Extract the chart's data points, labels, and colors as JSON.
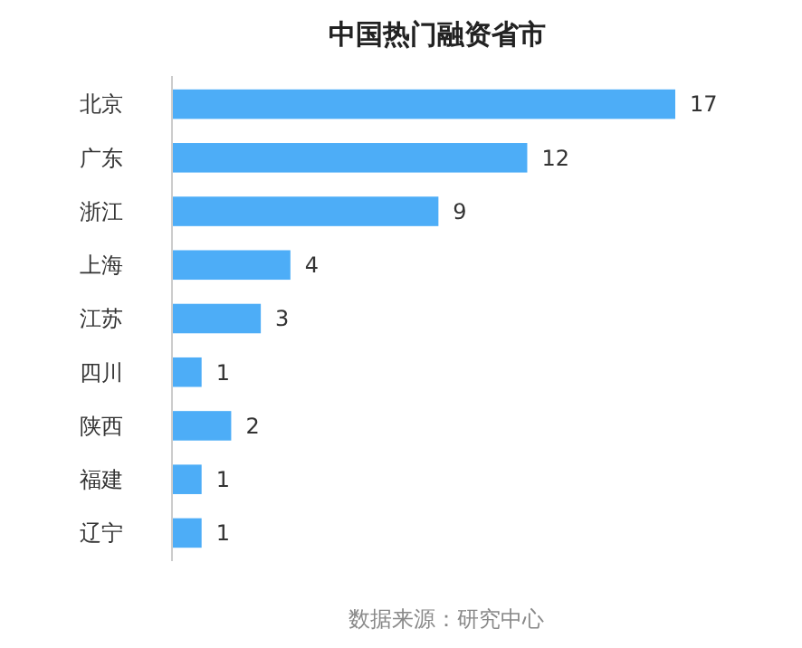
{
  "chart_data": {
    "type": "bar",
    "orientation": "horizontal",
    "title": "中国热门融资省市",
    "categories": [
      "北京",
      "广东",
      "浙江",
      "上海",
      "江苏",
      "四川",
      "陕西",
      "福建",
      "辽宁"
    ],
    "values": [
      17,
      12,
      9,
      4,
      3,
      1,
      2,
      1,
      1
    ],
    "color": "#4dadf7",
    "data_labels": true,
    "annotations": [
      "数据来源：研究中心"
    ]
  }
}
